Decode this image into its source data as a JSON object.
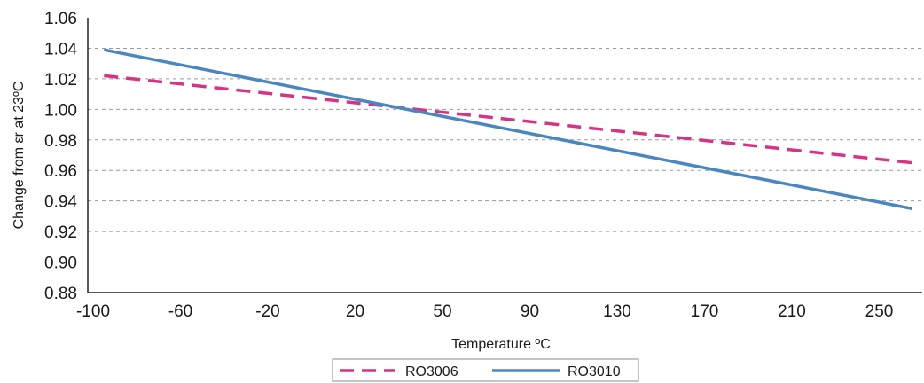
{
  "chart_data": {
    "type": "line",
    "title": "",
    "xlabel": "Temperature ºC",
    "ylabel": "Change from εr at 23ºC",
    "x_tick_labels": [
      "-100",
      "-60",
      "-20",
      "20",
      "50",
      "90",
      "130",
      "170",
      "210",
      "250"
    ],
    "y_tick_labels": [
      "0.88",
      "0.90",
      "0.92",
      "0.94",
      "0.96",
      "0.98",
      "1.00",
      "1.02",
      "1.04",
      "1.06"
    ],
    "ylim": [
      0.88,
      1.06
    ],
    "grid": "horizontal dashed",
    "legend_position": "bottom",
    "series": [
      {
        "name": "RO3006",
        "color": "#d63384",
        "style": "dashed",
        "x": [
          -95,
          265
        ],
        "y": [
          1.022,
          0.965
        ]
      },
      {
        "name": "RO3010",
        "color": "#4a86c0",
        "style": "solid",
        "x": [
          -95,
          265
        ],
        "y": [
          1.039,
          0.935
        ]
      }
    ]
  }
}
